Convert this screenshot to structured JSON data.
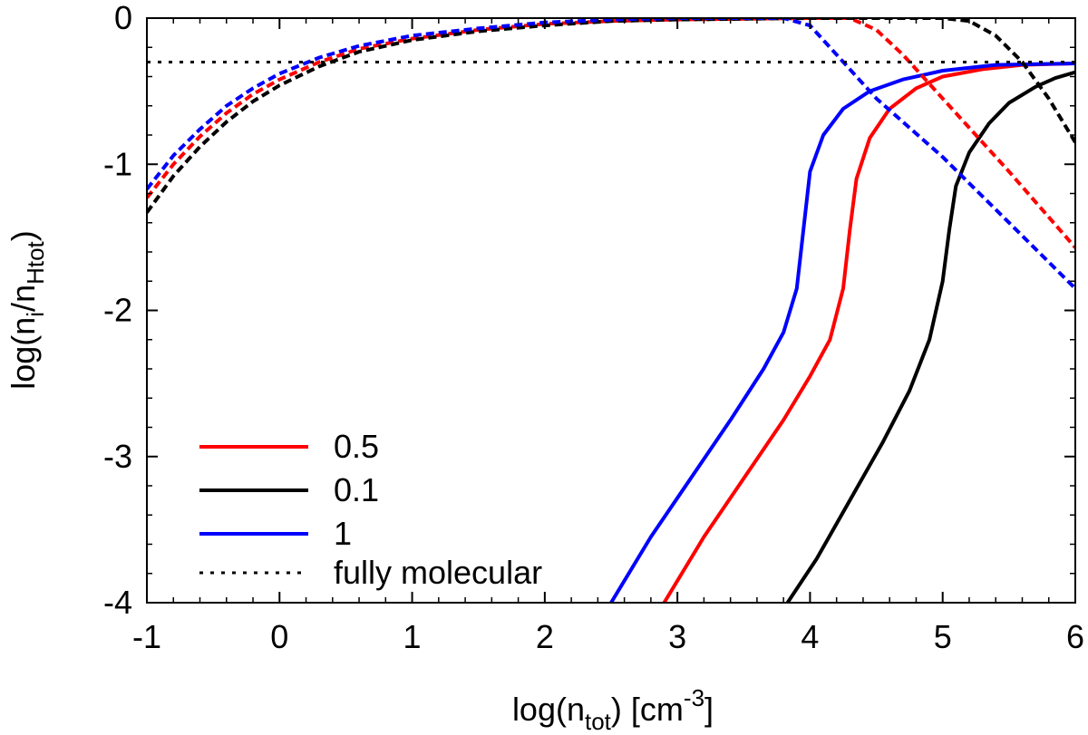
{
  "chart_data": {
    "type": "line",
    "xlabel": {
      "base": "log(n",
      "sub": "tot",
      "mid": ") [cm",
      "sup": "-3",
      "end": "]"
    },
    "ylabel": {
      "base": "log(n",
      "sub1": "i",
      "mid": "/n",
      "sub2": "Htot",
      "end": ")"
    },
    "xlim": [
      -1,
      6
    ],
    "ylim": [
      -4,
      0
    ],
    "x_ticks": [
      -1,
      0,
      1,
      2,
      3,
      4,
      5,
      6
    ],
    "y_ticks": [
      0,
      -1,
      -2,
      -3,
      -4
    ],
    "x_tick_labels": [
      "-1",
      "0",
      "1",
      "2",
      "3",
      "4",
      "5",
      "6"
    ],
    "y_tick_labels": [
      "0",
      "-1",
      "-2",
      "-3",
      "-4"
    ],
    "legend_position": "bottom-left",
    "legend": [
      {
        "label": "0.5",
        "color": "#ff0000",
        "style": "solid"
      },
      {
        "label": "0.1",
        "color": "#000000",
        "style": "solid"
      },
      {
        "label": "1",
        "color": "#0000ff",
        "style": "solid"
      },
      {
        "label": "fully molecular",
        "color": "#000000",
        "style": "dotted"
      }
    ],
    "series": [
      {
        "name": "0.5 solid",
        "color": "#ff0000",
        "style": "solid",
        "points": [
          [
            2.9,
            -4.0
          ],
          [
            3.2,
            -3.55
          ],
          [
            3.5,
            -3.15
          ],
          [
            3.8,
            -2.75
          ],
          [
            4.0,
            -2.45
          ],
          [
            4.15,
            -2.2
          ],
          [
            4.25,
            -1.85
          ],
          [
            4.3,
            -1.45
          ],
          [
            4.35,
            -1.1
          ],
          [
            4.45,
            -0.82
          ],
          [
            4.6,
            -0.62
          ],
          [
            4.8,
            -0.48
          ],
          [
            5.0,
            -0.4
          ],
          [
            5.3,
            -0.35
          ],
          [
            5.6,
            -0.32
          ],
          [
            6.0,
            -0.31
          ]
        ]
      },
      {
        "name": "0.1 solid",
        "color": "#000000",
        "style": "solid",
        "points": [
          [
            3.83,
            -4.0
          ],
          [
            4.05,
            -3.7
          ],
          [
            4.3,
            -3.3
          ],
          [
            4.55,
            -2.9
          ],
          [
            4.75,
            -2.55
          ],
          [
            4.9,
            -2.2
          ],
          [
            5.0,
            -1.8
          ],
          [
            5.05,
            -1.45
          ],
          [
            5.1,
            -1.15
          ],
          [
            5.2,
            -0.92
          ],
          [
            5.35,
            -0.72
          ],
          [
            5.5,
            -0.58
          ],
          [
            5.7,
            -0.47
          ],
          [
            5.85,
            -0.41
          ],
          [
            6.0,
            -0.37
          ]
        ]
      },
      {
        "name": "1 solid",
        "color": "#0000ff",
        "style": "solid",
        "points": [
          [
            2.5,
            -4.0
          ],
          [
            2.8,
            -3.55
          ],
          [
            3.1,
            -3.15
          ],
          [
            3.4,
            -2.75
          ],
          [
            3.65,
            -2.4
          ],
          [
            3.8,
            -2.15
          ],
          [
            3.9,
            -1.85
          ],
          [
            3.95,
            -1.45
          ],
          [
            4.0,
            -1.05
          ],
          [
            4.1,
            -0.8
          ],
          [
            4.25,
            -0.62
          ],
          [
            4.45,
            -0.5
          ],
          [
            4.7,
            -0.42
          ],
          [
            5.0,
            -0.36
          ],
          [
            5.4,
            -0.32
          ],
          [
            6.0,
            -0.31
          ]
        ]
      },
      {
        "name": "0.5 dashed",
        "color": "#ff0000",
        "style": "dashed",
        "points": [
          [
            -1,
            -1.23
          ],
          [
            -0.8,
            -1.0
          ],
          [
            -0.6,
            -0.81
          ],
          [
            -0.4,
            -0.65
          ],
          [
            -0.2,
            -0.52
          ],
          [
            0,
            -0.42
          ],
          [
            0.3,
            -0.3
          ],
          [
            0.6,
            -0.21
          ],
          [
            1,
            -0.14
          ],
          [
            1.5,
            -0.08
          ],
          [
            2,
            -0.04
          ],
          [
            2.5,
            -0.02
          ],
          [
            3,
            -0.01
          ],
          [
            4,
            0
          ],
          [
            4.3,
            0
          ],
          [
            4.5,
            -0.08
          ],
          [
            4.7,
            -0.25
          ],
          [
            5.0,
            -0.55
          ],
          [
            5.5,
            -1.05
          ],
          [
            6.0,
            -1.57
          ]
        ]
      },
      {
        "name": "0.1 dashed",
        "color": "#000000",
        "style": "dashed",
        "points": [
          [
            -1,
            -1.33
          ],
          [
            -0.8,
            -1.08
          ],
          [
            -0.6,
            -0.88
          ],
          [
            -0.4,
            -0.71
          ],
          [
            -0.2,
            -0.57
          ],
          [
            0,
            -0.46
          ],
          [
            0.3,
            -0.33
          ],
          [
            0.6,
            -0.23
          ],
          [
            1,
            -0.15
          ],
          [
            1.5,
            -0.09
          ],
          [
            2,
            -0.05
          ],
          [
            2.5,
            -0.02
          ],
          [
            3,
            -0.01
          ],
          [
            4,
            0
          ],
          [
            5,
            0
          ],
          [
            5.2,
            -0.02
          ],
          [
            5.4,
            -0.12
          ],
          [
            5.6,
            -0.3
          ],
          [
            5.8,
            -0.55
          ],
          [
            6.0,
            -0.85
          ]
        ]
      },
      {
        "name": "1 dashed",
        "color": "#0000ff",
        "style": "dashed",
        "points": [
          [
            -1,
            -1.17
          ],
          [
            -0.8,
            -0.94
          ],
          [
            -0.6,
            -0.76
          ],
          [
            -0.4,
            -0.6
          ],
          [
            -0.2,
            -0.48
          ],
          [
            0,
            -0.38
          ],
          [
            0.3,
            -0.27
          ],
          [
            0.6,
            -0.19
          ],
          [
            1,
            -0.12
          ],
          [
            1.5,
            -0.07
          ],
          [
            2,
            -0.03
          ],
          [
            2.5,
            -0.01
          ],
          [
            3,
            0
          ],
          [
            3.8,
            0
          ],
          [
            4.0,
            -0.05
          ],
          [
            4.2,
            -0.25
          ],
          [
            4.5,
            -0.55
          ],
          [
            5.0,
            -0.95
          ],
          [
            5.5,
            -1.4
          ],
          [
            6.0,
            -1.85
          ]
        ]
      },
      {
        "name": "fully molecular",
        "color": "#000000",
        "style": "dotted",
        "points": [
          [
            -1,
            -0.301
          ],
          [
            6,
            -0.301
          ]
        ]
      }
    ]
  }
}
